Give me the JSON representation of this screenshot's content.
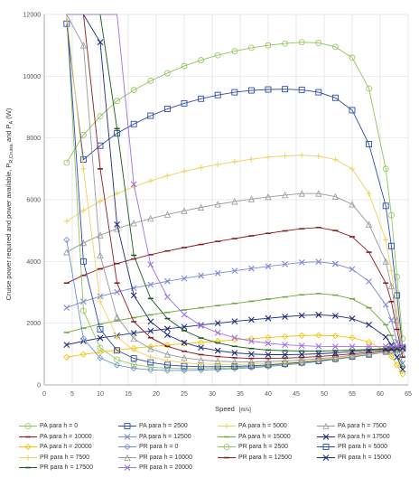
{
  "chart_data": {
    "type": "line",
    "xlabel": "Speed",
    "xlabel_unit": "[m/s]",
    "ylabel": "Cruise power required and power available, P",
    "ylabel_sub": "R,Cruise",
    "ylabel_tail": " and P",
    "ylabel_sub2": "A",
    "ylabel_end": " (W)",
    "xlim": [
      0,
      65
    ],
    "ylim": [
      0,
      12000
    ],
    "xticks": [
      "0",
      "5",
      "10",
      "15",
      "20",
      "25",
      "30",
      "35",
      "40",
      "45",
      "50",
      "55",
      "60",
      "65"
    ],
    "yticks": [
      "0",
      "2000",
      "4000",
      "6000",
      "8000",
      "10000",
      "12000"
    ],
    "grid": true,
    "legend_position": "bottom",
    "x": [
      4,
      7,
      10,
      13,
      16,
      19,
      22,
      25,
      28,
      31,
      34,
      37,
      40,
      43,
      46,
      49,
      52,
      55,
      58,
      61,
      62,
      63,
      64
    ],
    "series": [
      {
        "name": "PA para h = 0",
        "color": "#8fc45a",
        "marker": "circle",
        "values": [
          7200,
          8100,
          8700,
          9200,
          9550,
          9850,
          10100,
          10330,
          10520,
          10680,
          10810,
          10920,
          11000,
          11060,
          11100,
          11080,
          10950,
          10600,
          9600,
          7000,
          5500,
          3500,
          1500
        ]
      },
      {
        "name": "PA para h = 2500",
        "color": "#2e4aa8",
        "marker": "square",
        "values": [
          11700,
          7300,
          7750,
          8150,
          8450,
          8720,
          8940,
          9120,
          9270,
          9390,
          9480,
          9540,
          9570,
          9580,
          9560,
          9480,
          9300,
          8900,
          7800,
          5800,
          4500,
          2900,
          1200
        ]
      },
      {
        "name": "PA para h = 5000",
        "color": "#f0d060",
        "marker": "plus",
        "values": [
          5300,
          5650,
          5950,
          6200,
          6420,
          6610,
          6780,
          6920,
          7040,
          7140,
          7230,
          7310,
          7380,
          7420,
          7440,
          7410,
          7300,
          7000,
          6200,
          4700,
          3700,
          2400,
          1100
        ]
      },
      {
        "name": "PA para h = 7500",
        "color": "#999999",
        "marker": "triangle",
        "values": [
          4300,
          4600,
          4850,
          5060,
          5240,
          5390,
          5520,
          5640,
          5750,
          5850,
          5940,
          6020,
          6090,
          6150,
          6200,
          6200,
          6100,
          5850,
          5200,
          4000,
          3200,
          2100,
          1000
        ]
      },
      {
        "name": "PA para h = 10000",
        "color": "#8b1c1c",
        "marker": "dash",
        "values": [
          3300,
          3550,
          3760,
          3930,
          4080,
          4220,
          4340,
          4450,
          4550,
          4650,
          4740,
          4830,
          4910,
          4990,
          5060,
          5100,
          5000,
          4800,
          4300,
          3300,
          2700,
          1800,
          900
        ]
      },
      {
        "name": "PA para h = 12500",
        "color": "#7a8cd8",
        "marker": "x",
        "values": [
          2500,
          2700,
          2870,
          3010,
          3140,
          3250,
          3360,
          3450,
          3540,
          3620,
          3700,
          3770,
          3840,
          3910,
          3970,
          3990,
          3920,
          3750,
          3350,
          2600,
          2100,
          1400,
          700
        ]
      },
      {
        "name": "PA para h = 15000",
        "color": "#6aaa3a",
        "marker": "dash",
        "values": [
          1700,
          1840,
          1970,
          2080,
          2180,
          2270,
          2350,
          2430,
          2500,
          2570,
          2640,
          2710,
          2780,
          2850,
          2920,
          2960,
          2910,
          2790,
          2500,
          1950,
          1600,
          1100,
          600
        ]
      },
      {
        "name": "PA para h = 17500",
        "color": "#1e2d7a",
        "marker": "x",
        "values": [
          1300,
          1420,
          1520,
          1600,
          1680,
          1750,
          1820,
          1880,
          1940,
          2000,
          2060,
          2110,
          2160,
          2210,
          2250,
          2270,
          2240,
          2150,
          1950,
          1550,
          1300,
          900,
          500
        ]
      },
      {
        "name": "PA para h = 20000",
        "color": "#f2c200",
        "marker": "diamond",
        "values": [
          900,
          990,
          1060,
          1130,
          1190,
          1240,
          1290,
          1340,
          1380,
          1420,
          1460,
          1500,
          1540,
          1570,
          1600,
          1610,
          1590,
          1530,
          1390,
          1100,
          920,
          650,
          350
        ]
      },
      {
        "name": "PR para h = 0",
        "color": "#6a8fd8",
        "marker": "diamond",
        "values": [
          4700,
          1500,
          870,
          640,
          540,
          490,
          470,
          470,
          480,
          500,
          530,
          560,
          600,
          650,
          700,
          760,
          830,
          900,
          980,
          1070,
          1100,
          1130,
          1160
        ]
      },
      {
        "name": "PR para h = 2500",
        "color": "#8fc45a",
        "marker": "circle",
        "values": [
          12000,
          2400,
          1200,
          820,
          660,
          580,
          540,
          530,
          530,
          540,
          560,
          590,
          620,
          660,
          710,
          770,
          840,
          910,
          990,
          1080,
          1110,
          1140,
          1170
        ]
      },
      {
        "name": "PR para h = 5000",
        "color": "#2e4aa8",
        "marker": "square",
        "values": [
          12000,
          4000,
          1800,
          1120,
          860,
          730,
          650,
          610,
          590,
          590,
          600,
          620,
          650,
          690,
          730,
          780,
          850,
          920,
          990,
          1080,
          1110,
          1140,
          1170
        ]
      },
      {
        "name": "PR para h = 7500",
        "color": "#f0d060",
        "marker": "plus",
        "values": [
          12000,
          7000,
          2700,
          1550,
          1120,
          910,
          790,
          720,
          680,
          660,
          660,
          670,
          690,
          720,
          760,
          810,
          860,
          930,
          1000,
          1080,
          1110,
          1140,
          1170
        ]
      },
      {
        "name": "PR para h = 10000",
        "color": "#999999",
        "marker": "triangle",
        "values": [
          12000,
          11000,
          4200,
          2200,
          1500,
          1170,
          990,
          880,
          810,
          770,
          750,
          750,
          760,
          780,
          810,
          850,
          900,
          960,
          1020,
          1090,
          1110,
          1140,
          1170
        ]
      },
      {
        "name": "PR para h = 12500",
        "color": "#8b1c1c",
        "marker": "dash",
        "values": [
          12000,
          12000,
          7000,
          3300,
          2050,
          1530,
          1250,
          1090,
          980,
          920,
          880,
          860,
          860,
          870,
          890,
          920,
          960,
          1010,
          1060,
          1120,
          1140,
          1160,
          1180
        ]
      },
      {
        "name": "PR para h = 15000",
        "color": "#1e2d7a",
        "marker": "x",
        "values": [
          12000,
          12000,
          11100,
          5200,
          2900,
          2050,
          1620,
          1370,
          1210,
          1110,
          1040,
          1000,
          980,
          980,
          990,
          1010,
          1040,
          1080,
          1120,
          1160,
          1170,
          1180,
          1190
        ]
      },
      {
        "name": "PR para h = 17500",
        "color": "#1a5a1a",
        "marker": "dash",
        "values": [
          12000,
          12000,
          12000,
          8300,
          4200,
          2800,
          2150,
          1760,
          1520,
          1360,
          1250,
          1180,
          1130,
          1110,
          1100,
          1100,
          1110,
          1130,
          1150,
          1180,
          1190,
          1200,
          1210
        ]
      },
      {
        "name": "PR para h = 20000",
        "color": "#a070e0",
        "marker": "x",
        "values": [
          12000,
          12000,
          12000,
          12000,
          6500,
          3900,
          2850,
          2280,
          1920,
          1690,
          1530,
          1420,
          1350,
          1300,
          1270,
          1250,
          1240,
          1240,
          1240,
          1250,
          1250,
          1250,
          1250
        ]
      }
    ]
  }
}
